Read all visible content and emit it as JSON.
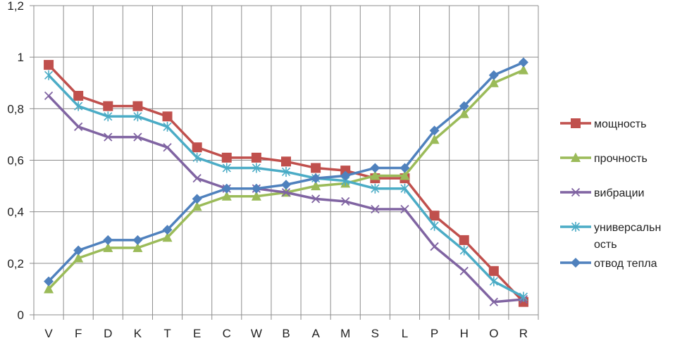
{
  "chart_data": {
    "type": "line",
    "categories": [
      "V",
      "F",
      "D",
      "K",
      "T",
      "E",
      "C",
      "W",
      "B",
      "A",
      "M",
      "S",
      "L",
      "P",
      "H",
      "O",
      "R"
    ],
    "ylim": [
      0,
      1.2
    ],
    "yticks": [
      "0",
      "0,2",
      "0,4",
      "0,6",
      "0,8",
      "1",
      "1,2"
    ],
    "ytick_values": [
      0,
      0.2,
      0.4,
      0.6,
      0.8,
      1.0,
      1.2
    ],
    "grid": true,
    "legend_position": "right",
    "series": [
      {
        "name": "мощность",
        "legend_lines": [
          "мощность"
        ],
        "color": "#C0504D",
        "marker": "square",
        "values": [
          0.97,
          0.85,
          0.81,
          0.81,
          0.77,
          0.65,
          0.61,
          0.61,
          0.595,
          0.57,
          0.56,
          0.53,
          0.53,
          0.385,
          0.29,
          0.17,
          0.05
        ]
      },
      {
        "name": "прочность",
        "legend_lines": [
          "прочность"
        ],
        "color": "#9BBB59",
        "marker": "triangle",
        "values": [
          0.1,
          0.22,
          0.26,
          0.26,
          0.3,
          0.42,
          0.46,
          0.46,
          0.475,
          0.5,
          0.51,
          0.54,
          0.54,
          0.68,
          0.78,
          0.9,
          0.95
        ]
      },
      {
        "name": "вибрации",
        "legend_lines": [
          "вибрации"
        ],
        "color": "#8064A2",
        "marker": "x",
        "values": [
          0.85,
          0.73,
          0.69,
          0.69,
          0.65,
          0.53,
          0.49,
          0.49,
          0.475,
          0.45,
          0.44,
          0.41,
          0.41,
          0.265,
          0.17,
          0.05,
          0.06
        ]
      },
      {
        "name": "универсальность",
        "legend_lines": [
          "универсальн",
          "ость"
        ],
        "color": "#4BACC6",
        "marker": "star",
        "values": [
          0.93,
          0.81,
          0.77,
          0.77,
          0.73,
          0.61,
          0.57,
          0.57,
          0.555,
          0.53,
          0.52,
          0.49,
          0.49,
          0.345,
          0.25,
          0.13,
          0.07
        ]
      },
      {
        "name": "отвод тепла",
        "legend_lines": [
          "отвод тепла"
        ],
        "color": "#4F81BD",
        "marker": "diamond",
        "values": [
          0.13,
          0.25,
          0.29,
          0.29,
          0.33,
          0.45,
          0.49,
          0.49,
          0.505,
          0.53,
          0.54,
          0.57,
          0.57,
          0.715,
          0.81,
          0.93,
          0.98
        ]
      }
    ]
  }
}
